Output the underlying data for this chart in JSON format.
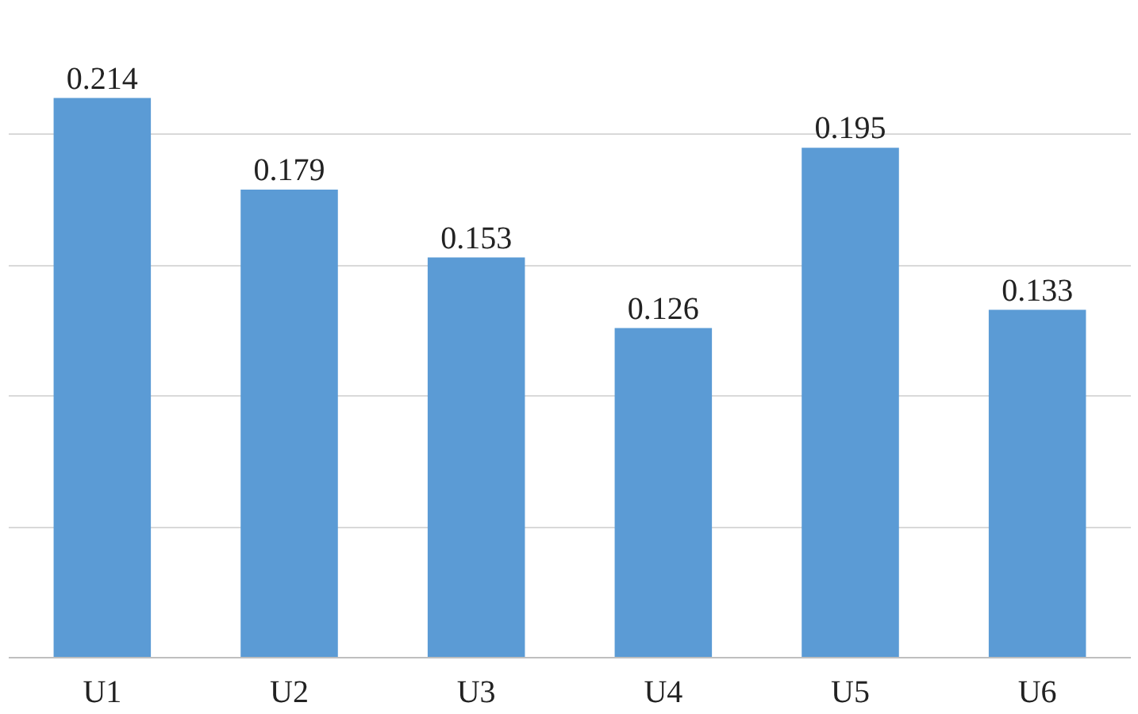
{
  "chart_data": {
    "type": "bar",
    "categories": [
      "U1",
      "U2",
      "U3",
      "U4",
      "U5",
      "U6"
    ],
    "values": [
      0.214,
      0.179,
      0.153,
      0.126,
      0.195,
      0.133
    ],
    "color": "#5b9bd5",
    "tick_labels": "x",
    "grid": "y",
    "data_labels": true
  }
}
